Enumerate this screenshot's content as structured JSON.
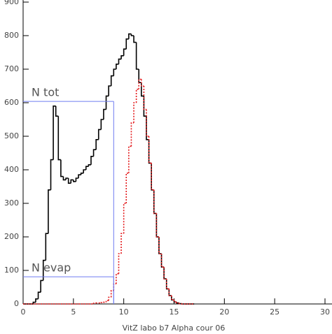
{
  "chart_data": {
    "type": "histogram",
    "xlabel": "VitZ labo b7 Alpha  cour  06",
    "bins": [
      0,
      0.25,
      0.5,
      0.75,
      1,
      1.25,
      1.5,
      1.75,
      2,
      2.25,
      2.5,
      2.75,
      3,
      3.25,
      3.5,
      3.75,
      4,
      4.25,
      4.5,
      4.75,
      5,
      5.25,
      5.5,
      5.75,
      6,
      6.25,
      6.5,
      6.75,
      7,
      7.25,
      7.5,
      7.75,
      8,
      8.25,
      8.5,
      8.75,
      9,
      9.25,
      9.5,
      9.75,
      10,
      10.25,
      10.5,
      10.75,
      11,
      11.25,
      11.5,
      11.75,
      12,
      12.25,
      12.5,
      12.75,
      13,
      13.25,
      13.5,
      13.75,
      14,
      14.25,
      14.5,
      14.75,
      15,
      15.25,
      15.5,
      15.75,
      16,
      16.25,
      16.5,
      16.75,
      17
    ],
    "series": [
      {
        "color": "#000000",
        "style": "solid",
        "values": [
          0,
          0,
          0,
          0,
          5,
          15,
          35,
          70,
          130,
          210,
          340,
          430,
          590,
          560,
          430,
          380,
          370,
          375,
          360,
          370,
          365,
          375,
          385,
          390,
          400,
          410,
          415,
          440,
          460,
          490,
          520,
          550,
          580,
          620,
          650,
          680,
          700,
          715,
          730,
          740,
          760,
          790,
          805,
          800,
          780,
          700,
          660,
          620,
          560,
          490,
          420,
          340,
          270,
          200,
          150,
          110,
          75,
          45,
          25,
          12,
          6,
          3,
          1,
          0,
          0,
          0,
          0,
          0
        ]
      },
      {
        "color": "#e41a1c",
        "style": "dotted",
        "values": [
          0,
          0,
          0,
          0,
          0,
          0,
          0,
          0,
          0,
          0,
          0,
          0,
          0,
          0,
          0,
          0,
          0,
          0,
          0,
          0,
          0,
          0,
          0,
          0,
          0,
          0,
          0,
          0,
          2,
          3,
          3,
          4,
          5,
          10,
          20,
          40,
          60,
          90,
          150,
          210,
          300,
          390,
          470,
          540,
          600,
          640,
          670,
          650,
          580,
          500,
          420,
          340,
          270,
          200,
          150,
          110,
          75,
          45,
          25,
          12,
          6,
          3,
          1,
          0,
          0,
          0,
          0,
          0
        ]
      }
    ],
    "markers": [
      {
        "label": "N tot",
        "y": 604,
        "x": 9
      },
      {
        "label": "N evap",
        "y": 81,
        "x": 9
      }
    ],
    "marker_color": "#6f7cf0",
    "xlim": [
      0,
      30
    ],
    "xticks": [
      0,
      5,
      10,
      15,
      20,
      25,
      30
    ],
    "ylim": [
      0,
      900
    ],
    "yticks": [
      0,
      100,
      200,
      300,
      400,
      500,
      600,
      700,
      800,
      900
    ]
  }
}
